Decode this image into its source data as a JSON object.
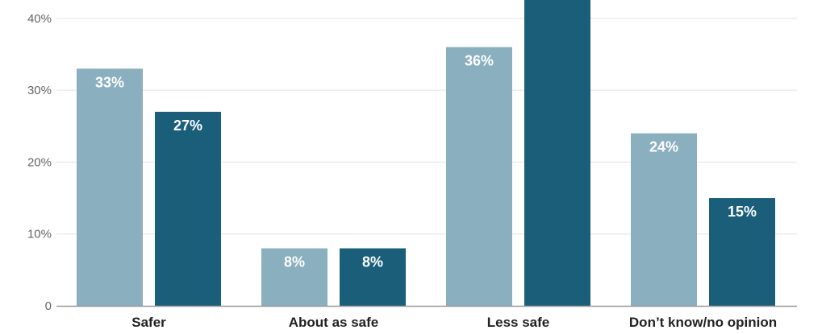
{
  "chart_data": {
    "type": "bar",
    "categories": [
      "Safer",
      "About as safe",
      "Less safe",
      "Don’t know/no opinion"
    ],
    "series": [
      {
        "values": [
          33,
          8,
          36,
          24
        ],
        "labels": [
          "33%",
          "8%",
          "36%",
          "24%"
        ],
        "color": "#8aafbe"
      },
      {
        "values": [
          27,
          8,
          43,
          15
        ],
        "labels": [
          "27%",
          "8%",
          "",
          "15%"
        ],
        "color": "#1a5e7a"
      }
    ],
    "yticks": [
      {
        "value": 0,
        "label": "0"
      },
      {
        "value": 10,
        "label": "10%"
      },
      {
        "value": 20,
        "label": "20%"
      },
      {
        "value": 30,
        "label": "30%"
      },
      {
        "value": 40,
        "label": "40%"
      }
    ],
    "ylim": [
      0,
      40
    ],
    "grid": true,
    "legend": "none"
  }
}
